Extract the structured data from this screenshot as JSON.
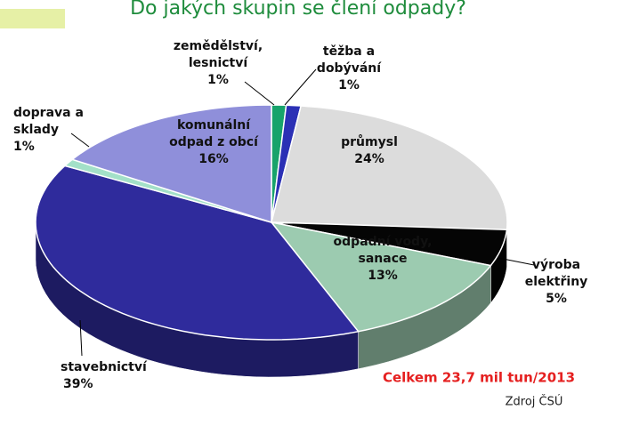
{
  "chart_data": {
    "type": "pie3d",
    "title": "Do jakých skupin se člení odpady?",
    "categories": [
      "zemědělství,\nlesnictví",
      "těžba a\ndobývání",
      "průmysl",
      "výroba\nelektřiny",
      "odpadní vody,\nsanace",
      "stavebnictví",
      "doprava a\nsklady",
      "komunální\nodpad z obcí"
    ],
    "values": [
      1,
      1,
      24,
      5,
      13,
      39,
      1,
      16
    ],
    "value_labels": [
      "1%",
      "1%",
      "24%",
      "5%",
      "13%",
      "39%",
      "1%",
      "16%"
    ],
    "colors": [
      "#17a36b",
      "#2b30b5",
      "#dcdcdc",
      "#050505",
      "#9ccbb0",
      "#2f2b9c",
      "#a3e0c8",
      "#8f8fda"
    ],
    "annotations": [
      "Celkem 23,7 mil tun/2013",
      "Zdroj ČSÚ"
    ]
  }
}
